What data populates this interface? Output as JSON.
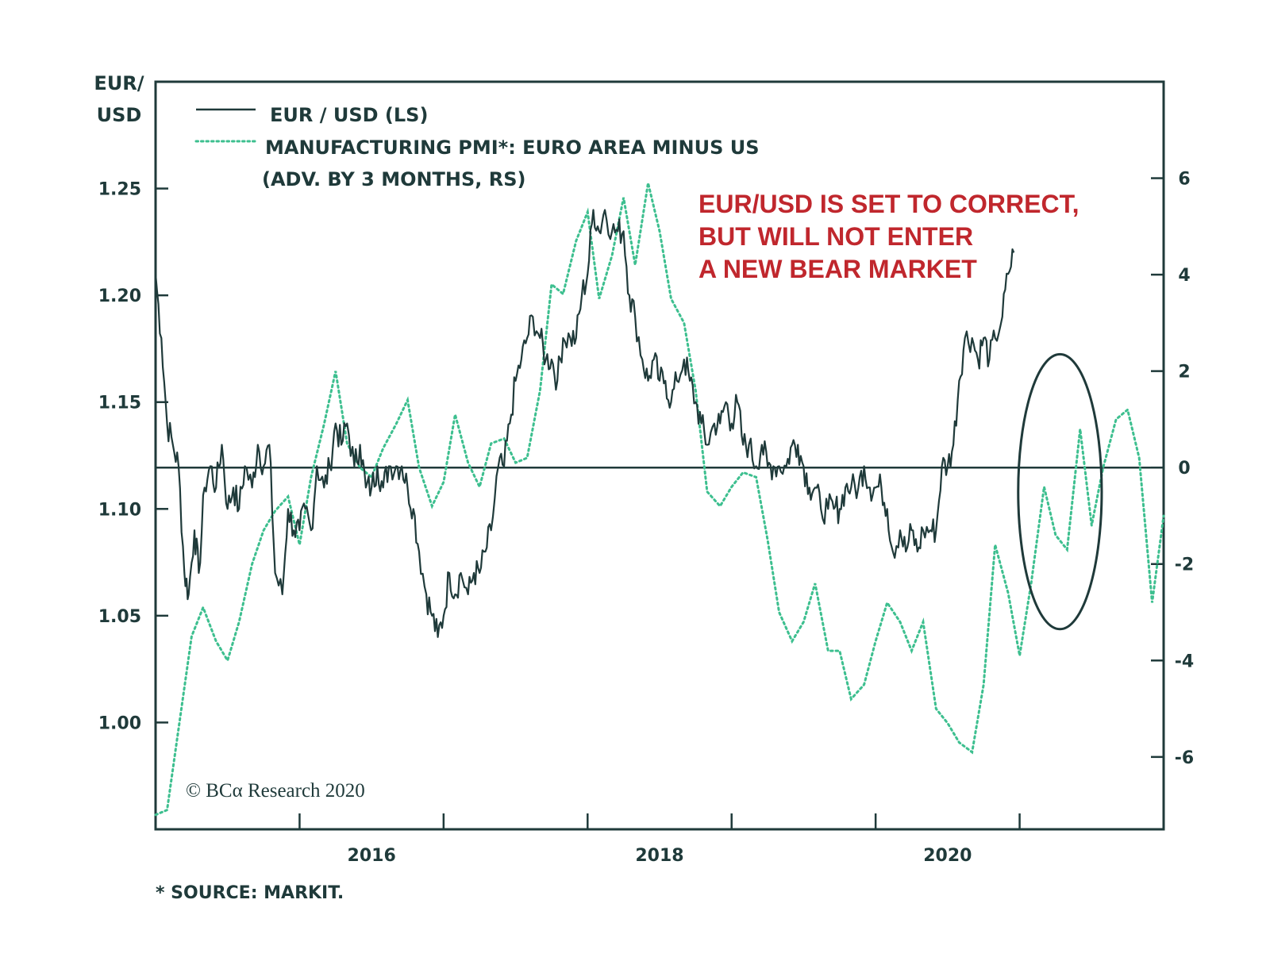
{
  "colors": {
    "frame": "#1f3a3a",
    "eurusd": "#1f3a3a",
    "pmi": "#3dbf8f",
    "annotation": "#c0272d",
    "background": "#ffffff"
  },
  "chart_data": {
    "type": "line",
    "left_axis": {
      "label_line1": "EUR/",
      "label_line2": "USD",
      "range": [
        0.95,
        1.3
      ],
      "ticks": [
        1.0,
        1.05,
        1.1,
        1.15,
        1.2,
        1.25
      ],
      "tick_labels": [
        "1.00",
        "1.05",
        "1.10",
        "1.15",
        "1.20",
        "1.25"
      ]
    },
    "right_axis": {
      "range": [
        -7.5,
        8
      ],
      "ticks": [
        -6,
        -4,
        -2,
        0,
        2,
        4,
        6
      ],
      "tick_labels": [
        "-6",
        "-4",
        "-2",
        "0",
        "2",
        "4",
        "6"
      ],
      "zero_line": true
    },
    "x_axis": {
      "range": [
        2015.0,
        2022.0
      ],
      "tick_marks": [
        2016.0,
        2017.0,
        2018.0,
        2019.0,
        2020.0,
        2021.0
      ],
      "labels": [
        {
          "x": 2016.5,
          "text": "2016"
        },
        {
          "x": 2018.5,
          "text": "2018"
        },
        {
          "x": 2020.5,
          "text": "2020"
        }
      ]
    },
    "legend": {
      "placement": "top-left",
      "items": [
        {
          "label": "EUR / USD (LS)",
          "style": "solid"
        },
        {
          "label": "MANUFACTURING PMI*: EURO AREA MINUS US",
          "label_line2": "(ADV. BY 3 MONTHS, RS)",
          "style": "dotted"
        }
      ]
    },
    "annotation": {
      "lines": [
        "EUR/USD IS SET TO CORRECT,",
        "BUT WILL NOT ENTER",
        "A NEW BEAR MARKET"
      ]
    },
    "highlight_ellipse": {
      "x_center": 2021.28,
      "y_center_rs": -0.5,
      "x_half_width": 0.29,
      "y_half_height_rs": 2.85
    },
    "series": [
      {
        "name": "EUR / USD (LS)",
        "axis": "left",
        "points": [
          [
            2015.0,
            1.21
          ],
          [
            2015.04,
            1.18
          ],
          [
            2015.08,
            1.14
          ],
          [
            2015.12,
            1.13
          ],
          [
            2015.16,
            1.12
          ],
          [
            2015.2,
            1.07
          ],
          [
            2015.23,
            1.06
          ],
          [
            2015.27,
            1.09
          ],
          [
            2015.3,
            1.07
          ],
          [
            2015.34,
            1.11
          ],
          [
            2015.38,
            1.12
          ],
          [
            2015.42,
            1.11
          ],
          [
            2015.46,
            1.13
          ],
          [
            2015.5,
            1.1
          ],
          [
            2015.54,
            1.11
          ],
          [
            2015.58,
            1.1
          ],
          [
            2015.62,
            1.12
          ],
          [
            2015.67,
            1.11
          ],
          [
            2015.71,
            1.13
          ],
          [
            2015.75,
            1.12
          ],
          [
            2015.79,
            1.13
          ],
          [
            2015.83,
            1.07
          ],
          [
            2015.88,
            1.06
          ],
          [
            2015.92,
            1.1
          ],
          [
            2015.96,
            1.09
          ],
          [
            2016.0,
            1.09
          ],
          [
            2016.04,
            1.1
          ],
          [
            2016.08,
            1.09
          ],
          [
            2016.12,
            1.12
          ],
          [
            2016.17,
            1.11
          ],
          [
            2016.21,
            1.12
          ],
          [
            2016.25,
            1.14
          ],
          [
            2016.29,
            1.13
          ],
          [
            2016.33,
            1.14
          ],
          [
            2016.38,
            1.12
          ],
          [
            2016.42,
            1.13
          ],
          [
            2016.46,
            1.11
          ],
          [
            2016.5,
            1.11
          ],
          [
            2016.54,
            1.12
          ],
          [
            2016.58,
            1.11
          ],
          [
            2016.62,
            1.12
          ],
          [
            2016.67,
            1.12
          ],
          [
            2016.71,
            1.12
          ],
          [
            2016.75,
            1.11
          ],
          [
            2016.79,
            1.1
          ],
          [
            2016.83,
            1.08
          ],
          [
            2016.88,
            1.06
          ],
          [
            2016.92,
            1.05
          ],
          [
            2016.96,
            1.04
          ],
          [
            2017.0,
            1.05
          ],
          [
            2017.04,
            1.07
          ],
          [
            2017.08,
            1.06
          ],
          [
            2017.12,
            1.07
          ],
          [
            2017.17,
            1.06
          ],
          [
            2017.21,
            1.07
          ],
          [
            2017.25,
            1.07
          ],
          [
            2017.29,
            1.08
          ],
          [
            2017.33,
            1.09
          ],
          [
            2017.38,
            1.12
          ],
          [
            2017.42,
            1.12
          ],
          [
            2017.46,
            1.14
          ],
          [
            2017.5,
            1.16
          ],
          [
            2017.54,
            1.17
          ],
          [
            2017.58,
            1.18
          ],
          [
            2017.62,
            1.19
          ],
          [
            2017.67,
            1.18
          ],
          [
            2017.71,
            1.17
          ],
          [
            2017.75,
            1.17
          ],
          [
            2017.79,
            1.16
          ],
          [
            2017.83,
            1.18
          ],
          [
            2017.88,
            1.18
          ],
          [
            2017.92,
            1.18
          ],
          [
            2017.96,
            1.2
          ],
          [
            2018.0,
            1.21
          ],
          [
            2018.04,
            1.24
          ],
          [
            2018.08,
            1.23
          ],
          [
            2018.12,
            1.24
          ],
          [
            2018.17,
            1.23
          ],
          [
            2018.21,
            1.23
          ],
          [
            2018.25,
            1.23
          ],
          [
            2018.29,
            1.2
          ],
          [
            2018.33,
            1.19
          ],
          [
            2018.38,
            1.17
          ],
          [
            2018.42,
            1.16
          ],
          [
            2018.46,
            1.17
          ],
          [
            2018.5,
            1.16
          ],
          [
            2018.54,
            1.16
          ],
          [
            2018.58,
            1.15
          ],
          [
            2018.62,
            1.16
          ],
          [
            2018.67,
            1.17
          ],
          [
            2018.71,
            1.16
          ],
          [
            2018.75,
            1.15
          ],
          [
            2018.79,
            1.14
          ],
          [
            2018.83,
            1.13
          ],
          [
            2018.88,
            1.14
          ],
          [
            2018.92,
            1.14
          ],
          [
            2018.96,
            1.15
          ],
          [
            2019.0,
            1.14
          ],
          [
            2019.04,
            1.15
          ],
          [
            2019.08,
            1.13
          ],
          [
            2019.12,
            1.13
          ],
          [
            2019.17,
            1.12
          ],
          [
            2019.21,
            1.13
          ],
          [
            2019.25,
            1.12
          ],
          [
            2019.29,
            1.12
          ],
          [
            2019.33,
            1.12
          ],
          [
            2019.38,
            1.12
          ],
          [
            2019.42,
            1.13
          ],
          [
            2019.46,
            1.13
          ],
          [
            2019.5,
            1.12
          ],
          [
            2019.54,
            1.11
          ],
          [
            2019.58,
            1.11
          ],
          [
            2019.62,
            1.1
          ],
          [
            2019.67,
            1.1
          ],
          [
            2019.71,
            1.1
          ],
          [
            2019.75,
            1.1
          ],
          [
            2019.79,
            1.11
          ],
          [
            2019.83,
            1.11
          ],
          [
            2019.88,
            1.11
          ],
          [
            2019.92,
            1.12
          ],
          [
            2019.96,
            1.11
          ],
          [
            2020.0,
            1.11
          ],
          [
            2020.04,
            1.11
          ],
          [
            2020.08,
            1.1
          ],
          [
            2020.12,
            1.08
          ],
          [
            2020.17,
            1.09
          ],
          [
            2020.21,
            1.08
          ],
          [
            2020.25,
            1.09
          ],
          [
            2020.29,
            1.08
          ],
          [
            2020.33,
            1.09
          ],
          [
            2020.38,
            1.09
          ],
          [
            2020.42,
            1.09
          ],
          [
            2020.46,
            1.12
          ],
          [
            2020.5,
            1.12
          ],
          [
            2020.54,
            1.13
          ],
          [
            2020.58,
            1.16
          ],
          [
            2020.62,
            1.18
          ],
          [
            2020.67,
            1.18
          ],
          [
            2020.71,
            1.17
          ],
          [
            2020.75,
            1.18
          ],
          [
            2020.79,
            1.17
          ],
          [
            2020.83,
            1.18
          ],
          [
            2020.88,
            1.19
          ],
          [
            2020.92,
            1.21
          ],
          [
            2020.96,
            1.22
          ]
        ]
      },
      {
        "name": "MANUFACTURING PMI*: EURO AREA MINUS US (ADV. BY 3 MONTHS, RS)",
        "axis": "right",
        "points": [
          [
            2015.0,
            -7.2
          ],
          [
            2015.08,
            -7.1
          ],
          [
            2015.17,
            -5.2
          ],
          [
            2015.25,
            -3.5
          ],
          [
            2015.33,
            -2.9
          ],
          [
            2015.42,
            -3.6
          ],
          [
            2015.5,
            -4.0
          ],
          [
            2015.58,
            -3.2
          ],
          [
            2015.67,
            -2.0
          ],
          [
            2015.75,
            -1.3
          ],
          [
            2015.83,
            -0.9
          ],
          [
            2015.92,
            -0.6
          ],
          [
            2016.0,
            -1.6
          ],
          [
            2016.08,
            -0.2
          ],
          [
            2016.17,
            0.9
          ],
          [
            2016.25,
            2.0
          ],
          [
            2016.33,
            0.5
          ],
          [
            2016.42,
            0.0
          ],
          [
            2016.5,
            -0.2
          ],
          [
            2016.58,
            0.4
          ],
          [
            2016.67,
            0.9
          ],
          [
            2016.75,
            1.4
          ],
          [
            2016.83,
            0.0
          ],
          [
            2016.92,
            -0.8
          ],
          [
            2017.0,
            -0.3
          ],
          [
            2017.08,
            1.1
          ],
          [
            2017.17,
            0.1
          ],
          [
            2017.25,
            -0.4
          ],
          [
            2017.33,
            0.5
          ],
          [
            2017.42,
            0.6
          ],
          [
            2017.5,
            0.1
          ],
          [
            2017.58,
            0.2
          ],
          [
            2017.67,
            1.6
          ],
          [
            2017.75,
            3.8
          ],
          [
            2017.83,
            3.6
          ],
          [
            2017.92,
            4.7
          ],
          [
            2018.0,
            5.3
          ],
          [
            2018.08,
            3.5
          ],
          [
            2018.17,
            4.4
          ],
          [
            2018.25,
            5.6
          ],
          [
            2018.33,
            4.2
          ],
          [
            2018.42,
            5.9
          ],
          [
            2018.5,
            4.9
          ],
          [
            2018.58,
            3.5
          ],
          [
            2018.67,
            3.0
          ],
          [
            2018.75,
            1.6
          ],
          [
            2018.83,
            -0.5
          ],
          [
            2018.92,
            -0.8
          ],
          [
            2019.0,
            -0.4
          ],
          [
            2019.08,
            -0.1
          ],
          [
            2019.17,
            -0.2
          ],
          [
            2019.25,
            -1.5
          ],
          [
            2019.33,
            -3.0
          ],
          [
            2019.42,
            -3.6
          ],
          [
            2019.5,
            -3.2
          ],
          [
            2019.58,
            -2.4
          ],
          [
            2019.67,
            -3.8
          ],
          [
            2019.75,
            -3.8
          ],
          [
            2019.83,
            -4.8
          ],
          [
            2019.92,
            -4.5
          ],
          [
            2020.0,
            -3.6
          ],
          [
            2020.08,
            -2.8
          ],
          [
            2020.17,
            -3.2
          ],
          [
            2020.25,
            -3.8
          ],
          [
            2020.33,
            -3.2
          ],
          [
            2020.42,
            -5.0
          ],
          [
            2020.5,
            -5.3
          ],
          [
            2020.58,
            -5.7
          ],
          [
            2020.67,
            -5.9
          ],
          [
            2020.75,
            -4.5
          ],
          [
            2020.83,
            -1.6
          ],
          [
            2020.92,
            -2.6
          ],
          [
            2021.0,
            -3.9
          ],
          [
            2021.08,
            -2.4
          ],
          [
            2021.17,
            -0.4
          ],
          [
            2021.25,
            -1.4
          ],
          [
            2021.33,
            -1.7
          ],
          [
            2021.42,
            0.8
          ],
          [
            2021.5,
            -1.2
          ],
          [
            2021.58,
            0.0
          ],
          [
            2021.67,
            1.0
          ],
          [
            2021.75,
            1.2
          ],
          [
            2021.83,
            0.2
          ],
          [
            2021.92,
            -2.8
          ],
          [
            2022.0,
            -1.0
          ]
        ]
      }
    ]
  },
  "copyright": "© BCα Research 2020",
  "footnote": "* SOURCE: MARKIT."
}
